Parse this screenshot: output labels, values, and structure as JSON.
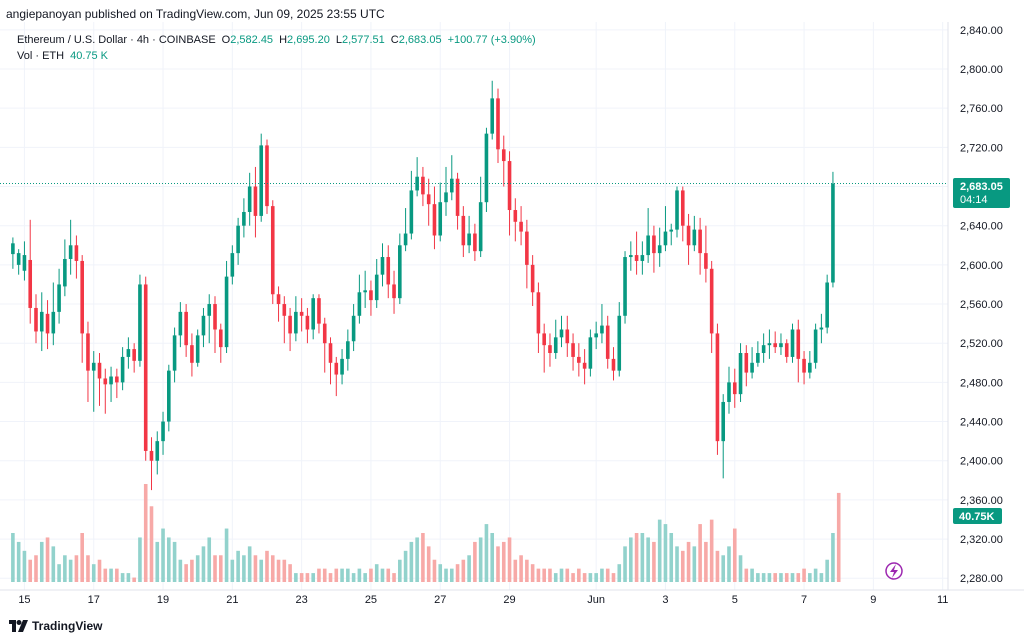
{
  "header": {
    "publisher_text": "angiepanoyan published on TradingView.com, Jun 09, 2025 23:55 UTC"
  },
  "legend": {
    "symbol": "Ethereum / U.S. Dollar · 4h · COINBASE",
    "o_label": "O",
    "o_value": "2,582.45",
    "h_label": "H",
    "h_value": "2,695.20",
    "l_label": "L",
    "l_value": "2,577.51",
    "c_label": "C",
    "c_value": "2,683.05",
    "change": "+100.77 (+3.90%)",
    "vol_label": "Vol · ETH",
    "vol_value": "40.75 K"
  },
  "badges": {
    "price": "2,683.05",
    "countdown": "04:14",
    "volume": "40.75K"
  },
  "footer": {
    "brand": "TradingView"
  },
  "colors": {
    "up": "#089981",
    "down": "#f23645",
    "up_volume": "#92d2cc",
    "down_volume": "#f7a9a7",
    "grid": "#f0f3fa"
  },
  "chart_data": {
    "type": "candlestick",
    "symbol": "ETH/USD",
    "interval": "4h",
    "y_ticks": [
      "2,280.00",
      "2,320.00",
      "2,360.00",
      "2,400.00",
      "2,440.00",
      "2,480.00",
      "2,520.00",
      "2,560.00",
      "2,600.00",
      "2,640.00",
      "2,680.00",
      "2,720.00",
      "2,760.00",
      "2,800.00",
      "2,840.00"
    ],
    "y_tick_values": [
      2280,
      2320,
      2360,
      2400,
      2440,
      2480,
      2520,
      2560,
      2600,
      2640,
      2680,
      2720,
      2760,
      2800,
      2840
    ],
    "ylim": [
      2268,
      2848
    ],
    "x_ticks": [
      "15",
      "17",
      "19",
      "21",
      "23",
      "25",
      "27",
      "29",
      "Jun",
      "3",
      "5",
      "7",
      "9",
      "11"
    ],
    "x_tick_index": [
      2,
      14,
      26,
      38,
      50,
      62,
      74,
      86,
      101,
      113,
      125,
      137,
      149,
      161
    ],
    "last_price": 2683.05,
    "grid": true,
    "candles": [
      [
        2611,
        2622,
        2596,
        2628
      ],
      [
        2600,
        2612,
        2590,
        2616
      ],
      [
        2594,
        2610,
        2584,
        2624
      ],
      [
        2605,
        2556,
        2540,
        2646
      ],
      [
        2556,
        2532,
        2520,
        2570
      ],
      [
        2532,
        2552,
        2512,
        2572
      ],
      [
        2550,
        2530,
        2514,
        2564
      ],
      [
        2530,
        2552,
        2518,
        2582
      ],
      [
        2552,
        2580,
        2540,
        2596
      ],
      [
        2578,
        2606,
        2568,
        2626
      ],
      [
        2606,
        2620,
        2590,
        2646
      ],
      [
        2620,
        2604,
        2586,
        2630
      ],
      [
        2604,
        2530,
        2500,
        2610
      ],
      [
        2530,
        2492,
        2460,
        2542
      ],
      [
        2492,
        2500,
        2450,
        2512
      ],
      [
        2500,
        2484,
        2456,
        2510
      ],
      [
        2484,
        2478,
        2448,
        2494
      ],
      [
        2478,
        2486,
        2460,
        2496
      ],
      [
        2486,
        2480,
        2464,
        2494
      ],
      [
        2480,
        2506,
        2472,
        2516
      ],
      [
        2506,
        2514,
        2494,
        2526
      ],
      [
        2514,
        2502,
        2490,
        2520
      ],
      [
        2502,
        2580,
        2496,
        2590
      ],
      [
        2580,
        2410,
        2400,
        2588
      ],
      [
        2410,
        2400,
        2370,
        2424
      ],
      [
        2400,
        2420,
        2386,
        2430
      ],
      [
        2420,
        2440,
        2406,
        2450
      ],
      [
        2440,
        2492,
        2430,
        2498
      ],
      [
        2492,
        2528,
        2480,
        2536
      ],
      [
        2528,
        2552,
        2516,
        2562
      ],
      [
        2552,
        2518,
        2506,
        2560
      ],
      [
        2518,
        2500,
        2486,
        2530
      ],
      [
        2500,
        2528,
        2496,
        2534
      ],
      [
        2528,
        2548,
        2516,
        2556
      ],
      [
        2548,
        2560,
        2520,
        2570
      ],
      [
        2560,
        2534,
        2510,
        2568
      ],
      [
        2534,
        2516,
        2500,
        2540
      ],
      [
        2516,
        2588,
        2510,
        2604
      ],
      [
        2588,
        2612,
        2580,
        2620
      ],
      [
        2612,
        2640,
        2600,
        2648
      ],
      [
        2640,
        2654,
        2628,
        2668
      ],
      [
        2654,
        2680,
        2640,
        2694
      ],
      [
        2680,
        2650,
        2628,
        2700
      ],
      [
        2650,
        2722,
        2644,
        2734
      ],
      [
        2722,
        2660,
        2652,
        2728
      ],
      [
        2660,
        2570,
        2560,
        2666
      ],
      [
        2570,
        2560,
        2542,
        2578
      ],
      [
        2560,
        2548,
        2520,
        2568
      ],
      [
        2548,
        2530,
        2512,
        2556
      ],
      [
        2530,
        2552,
        2522,
        2568
      ],
      [
        2552,
        2548,
        2532,
        2566
      ],
      [
        2548,
        2534,
        2520,
        2556
      ],
      [
        2534,
        2566,
        2524,
        2570
      ],
      [
        2566,
        2540,
        2530,
        2570
      ],
      [
        2540,
        2520,
        2490,
        2546
      ],
      [
        2520,
        2500,
        2478,
        2526
      ],
      [
        2500,
        2488,
        2466,
        2506
      ],
      [
        2488,
        2504,
        2478,
        2514
      ],
      [
        2504,
        2522,
        2492,
        2534
      ],
      [
        2522,
        2548,
        2512,
        2560
      ],
      [
        2548,
        2572,
        2540,
        2590
      ],
      [
        2572,
        2574,
        2556,
        2594
      ],
      [
        2574,
        2564,
        2548,
        2584
      ],
      [
        2564,
        2590,
        2556,
        2606
      ],
      [
        2590,
        2608,
        2578,
        2622
      ],
      [
        2608,
        2580,
        2566,
        2620
      ],
      [
        2580,
        2566,
        2550,
        2594
      ],
      [
        2566,
        2620,
        2560,
        2632
      ],
      [
        2620,
        2632,
        2614,
        2658
      ],
      [
        2632,
        2676,
        2626,
        2696
      ],
      [
        2676,
        2690,
        2670,
        2710
      ],
      [
        2690,
        2672,
        2660,
        2700
      ],
      [
        2672,
        2662,
        2640,
        2688
      ],
      [
        2662,
        2630,
        2616,
        2680
      ],
      [
        2630,
        2664,
        2624,
        2684
      ],
      [
        2664,
        2674,
        2650,
        2700
      ],
      [
        2674,
        2688,
        2666,
        2712
      ],
      [
        2688,
        2650,
        2636,
        2694
      ],
      [
        2650,
        2620,
        2608,
        2660
      ],
      [
        2620,
        2632,
        2612,
        2650
      ],
      [
        2632,
        2614,
        2604,
        2642
      ],
      [
        2614,
        2664,
        2608,
        2690
      ],
      [
        2664,
        2734,
        2654,
        2740
      ],
      [
        2734,
        2770,
        2728,
        2788
      ],
      [
        2770,
        2718,
        2704,
        2780
      ],
      [
        2718,
        2706,
        2680,
        2732
      ],
      [
        2706,
        2656,
        2630,
        2716
      ],
      [
        2656,
        2644,
        2624,
        2668
      ],
      [
        2644,
        2634,
        2620,
        2660
      ],
      [
        2634,
        2600,
        2576,
        2646
      ],
      [
        2600,
        2572,
        2558,
        2610
      ],
      [
        2572,
        2530,
        2510,
        2582
      ],
      [
        2530,
        2518,
        2490,
        2540
      ],
      [
        2518,
        2510,
        2496,
        2530
      ],
      [
        2510,
        2526,
        2504,
        2544
      ],
      [
        2526,
        2534,
        2516,
        2548
      ],
      [
        2534,
        2520,
        2506,
        2548
      ],
      [
        2520,
        2506,
        2492,
        2530
      ],
      [
        2506,
        2500,
        2486,
        2520
      ],
      [
        2500,
        2494,
        2478,
        2514
      ],
      [
        2494,
        2526,
        2486,
        2534
      ],
      [
        2526,
        2530,
        2514,
        2542
      ],
      [
        2530,
        2538,
        2520,
        2560
      ],
      [
        2538,
        2504,
        2494,
        2548
      ],
      [
        2504,
        2492,
        2482,
        2516
      ],
      [
        2492,
        2548,
        2486,
        2562
      ],
      [
        2548,
        2608,
        2540,
        2614
      ],
      [
        2608,
        2610,
        2594,
        2624
      ],
      [
        2610,
        2604,
        2590,
        2634
      ],
      [
        2604,
        2610,
        2590,
        2624
      ],
      [
        2610,
        2630,
        2602,
        2658
      ],
      [
        2630,
        2612,
        2592,
        2640
      ],
      [
        2612,
        2620,
        2598,
        2638
      ],
      [
        2620,
        2634,
        2614,
        2660
      ],
      [
        2634,
        2636,
        2620,
        2642
      ],
      [
        2636,
        2676,
        2628,
        2680
      ],
      [
        2676,
        2640,
        2624,
        2680
      ],
      [
        2640,
        2620,
        2600,
        2652
      ],
      [
        2620,
        2636,
        2614,
        2650
      ],
      [
        2636,
        2612,
        2590,
        2648
      ],
      [
        2612,
        2596,
        2582,
        2640
      ],
      [
        2596,
        2530,
        2510,
        2604
      ],
      [
        2530,
        2420,
        2406,
        2540
      ],
      [
        2420,
        2460,
        2382,
        2468
      ],
      [
        2460,
        2480,
        2448,
        2496
      ],
      [
        2480,
        2468,
        2454,
        2494
      ],
      [
        2468,
        2510,
        2460,
        2520
      ],
      [
        2510,
        2490,
        2476,
        2518
      ],
      [
        2490,
        2500,
        2484,
        2516
      ],
      [
        2500,
        2510,
        2496,
        2522
      ],
      [
        2510,
        2518,
        2500,
        2530
      ],
      [
        2518,
        2520,
        2504,
        2534
      ],
      [
        2520,
        2516,
        2510,
        2532
      ],
      [
        2516,
        2520,
        2508,
        2530
      ],
      [
        2520,
        2506,
        2500,
        2524
      ],
      [
        2506,
        2534,
        2500,
        2540
      ],
      [
        2534,
        2504,
        2480,
        2544
      ],
      [
        2504,
        2490,
        2478,
        2512
      ],
      [
        2490,
        2500,
        2484,
        2512
      ],
      [
        2500,
        2534,
        2494,
        2540
      ],
      [
        2534,
        2536,
        2520,
        2550
      ],
      [
        2536,
        2582,
        2530,
        2590
      ],
      [
        2582,
        2683,
        2577,
        2695
      ]
    ],
    "volumes": [
      11,
      9,
      7,
      5,
      6,
      9,
      10,
      8,
      4,
      6,
      5,
      6,
      11,
      6,
      4,
      5,
      3,
      3,
      3,
      2,
      2,
      1,
      10,
      22,
      17,
      9,
      12,
      10,
      9,
      5,
      4,
      5,
      6,
      8,
      10,
      6,
      6,
      12,
      5,
      7,
      6,
      8,
      6,
      5,
      7,
      6,
      5,
      5,
      4,
      2,
      2,
      2,
      2,
      3,
      3,
      2,
      3,
      3,
      3,
      2,
      3,
      2,
      3,
      4,
      3,
      3,
      2,
      5,
      7,
      9,
      10,
      11,
      8,
      5,
      4,
      3,
      3,
      4,
      5,
      6,
      9,
      10,
      13,
      11,
      8,
      9,
      10,
      5,
      6,
      5,
      4,
      3,
      3,
      3,
      2,
      3,
      3,
      2,
      3,
      2,
      2,
      2,
      3,
      3,
      2,
      4,
      8,
      10,
      11,
      11,
      10,
      9,
      14,
      13,
      11,
      8,
      7,
      9,
      8,
      13,
      9,
      14,
      7,
      6,
      8,
      12,
      6,
      3,
      3,
      2,
      2,
      2,
      2,
      2,
      2,
      2,
      2,
      3,
      2,
      3,
      2,
      5,
      11,
      20
    ]
  }
}
